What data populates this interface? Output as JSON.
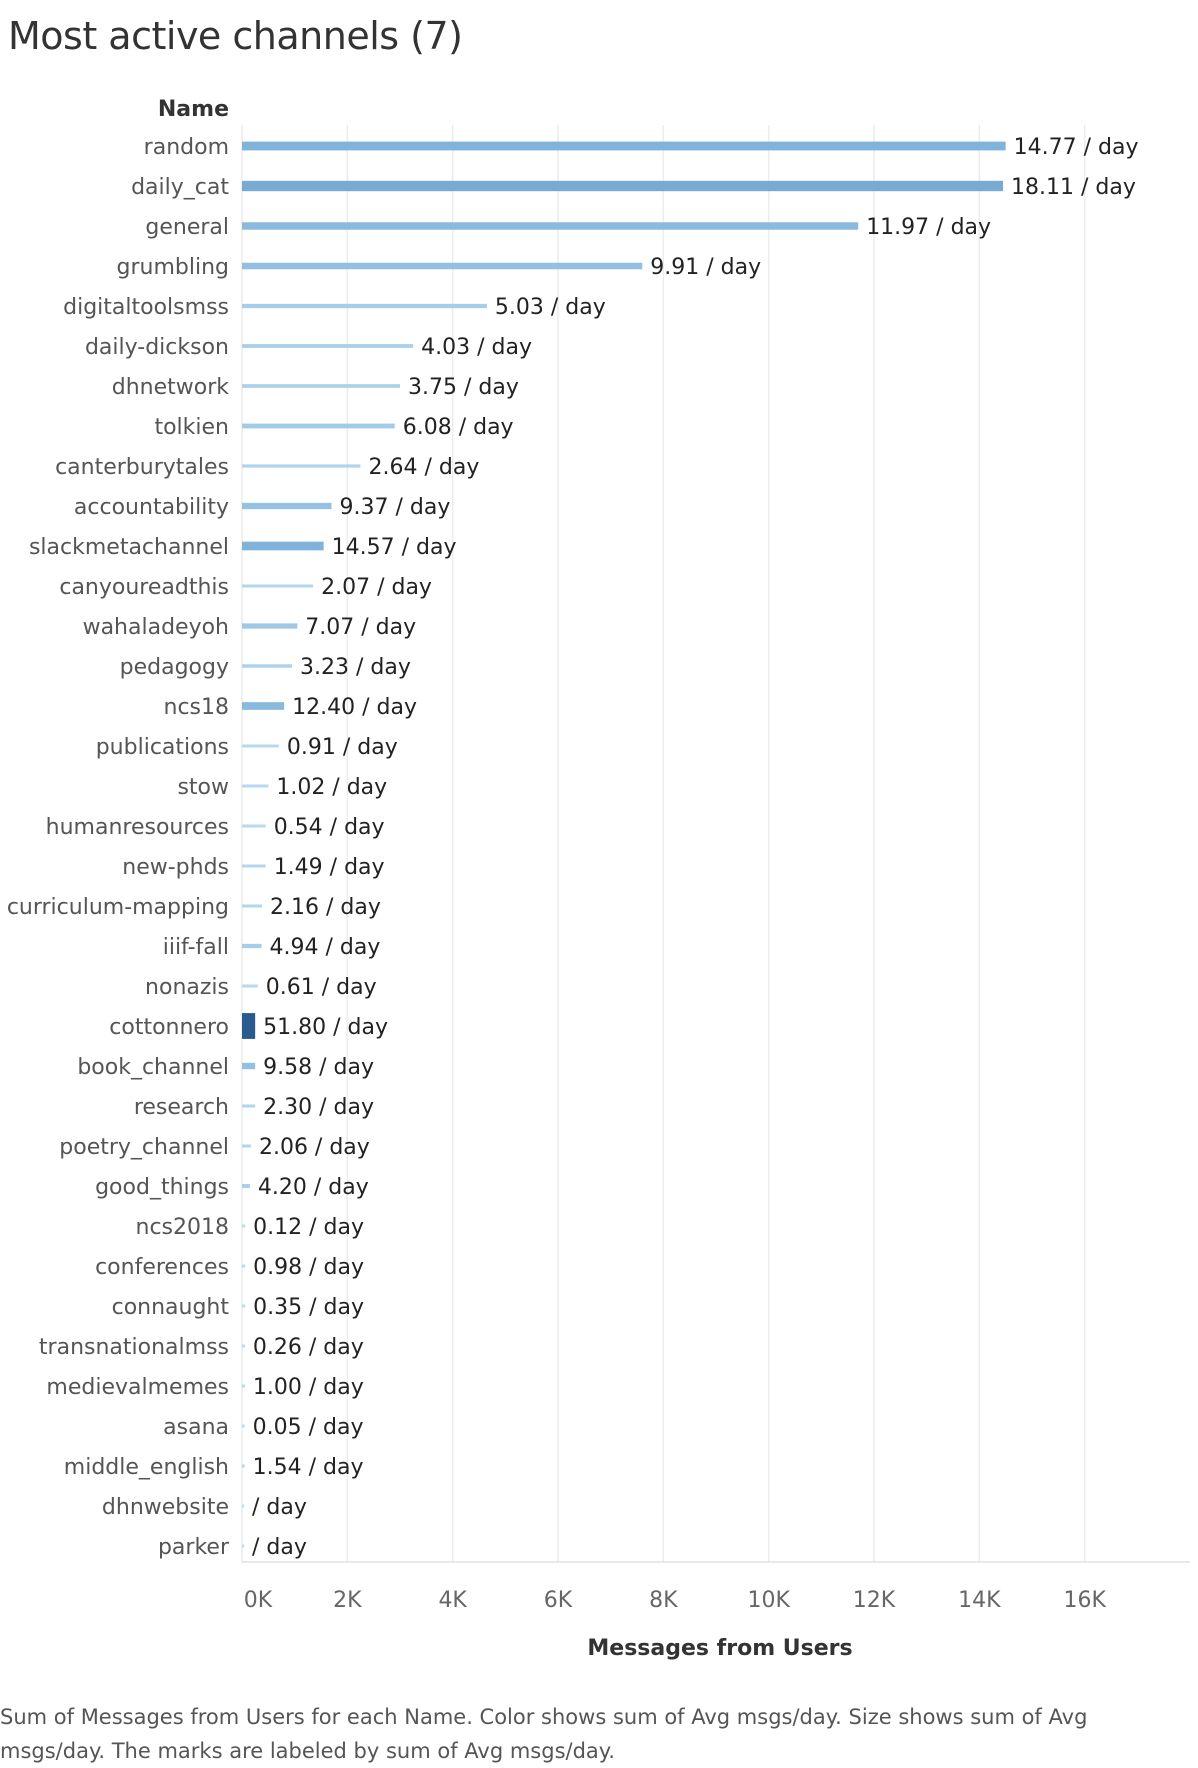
{
  "page": {
    "title": "Most active channels (7)",
    "caption": "Sum of Messages from Users for each Name.  Color shows sum of Avg msgs/day.  Size shows sum of Avg msgs/day.  The marks are labeled by sum of Avg msgs/day."
  },
  "chart_data": {
    "type": "bar",
    "orientation": "horizontal",
    "row_header": "Name",
    "xlabel": "Messages from Users",
    "xlim": [
      0,
      18000
    ],
    "xticks": [
      0,
      2000,
      4000,
      6000,
      8000,
      10000,
      12000,
      14000,
      16000
    ],
    "xtick_labels": [
      "0K",
      "2K",
      "4K",
      "6K",
      "8K",
      "10K",
      "12K",
      "14K",
      "16K"
    ],
    "grid": "vertical",
    "color_scale": {
      "low": "#b9dcf0",
      "mid": "#7fb2d9",
      "high": "#2b5b8c"
    },
    "rows": [
      {
        "name": "random",
        "value": 14500,
        "avg": 14.77,
        "label": "14.77 / day"
      },
      {
        "name": "daily_cat",
        "value": 14450,
        "avg": 18.11,
        "label": "18.11 / day"
      },
      {
        "name": "general",
        "value": 11700,
        "avg": 11.97,
        "label": "11.97 / day"
      },
      {
        "name": "grumbling",
        "value": 7600,
        "avg": 9.91,
        "label": "9.91 / day"
      },
      {
        "name": "digitaltoolsmss",
        "value": 4650,
        "avg": 5.03,
        "label": "5.03 / day"
      },
      {
        "name": "daily-dickson",
        "value": 3250,
        "avg": 4.03,
        "label": "4.03 / day"
      },
      {
        "name": "dhnetwork",
        "value": 3000,
        "avg": 3.75,
        "label": "3.75 / day"
      },
      {
        "name": "tolkien",
        "value": 2900,
        "avg": 6.08,
        "label": "6.08 / day"
      },
      {
        "name": "canterburytales",
        "value": 2250,
        "avg": 2.64,
        "label": "2.64 / day"
      },
      {
        "name": "accountability",
        "value": 1700,
        "avg": 9.37,
        "label": "9.37 / day"
      },
      {
        "name": "slackmetachannel",
        "value": 1550,
        "avg": 14.57,
        "label": "14.57 / day"
      },
      {
        "name": "canyoureadthis",
        "value": 1350,
        "avg": 2.07,
        "label": "2.07 / day"
      },
      {
        "name": "wahaladeyoh",
        "value": 1050,
        "avg": 7.07,
        "label": "7.07 / day"
      },
      {
        "name": "pedagogy",
        "value": 950,
        "avg": 3.23,
        "label": "3.23 / day"
      },
      {
        "name": "ncs18",
        "value": 800,
        "avg": 12.4,
        "label": "12.40 / day"
      },
      {
        "name": "publications",
        "value": 700,
        "avg": 0.91,
        "label": "0.91 / day"
      },
      {
        "name": "stow",
        "value": 500,
        "avg": 1.02,
        "label": "1.02 / day"
      },
      {
        "name": "humanresources",
        "value": 450,
        "avg": 0.54,
        "label": "0.54 / day"
      },
      {
        "name": "new-phds",
        "value": 450,
        "avg": 1.49,
        "label": "1.49 / day"
      },
      {
        "name": "curriculum-mapping",
        "value": 380,
        "avg": 2.16,
        "label": "2.16 / day"
      },
      {
        "name": "iiif-fall",
        "value": 370,
        "avg": 4.94,
        "label": "4.94 / day"
      },
      {
        "name": "nonazis",
        "value": 300,
        "avg": 0.61,
        "label": "0.61 / day"
      },
      {
        "name": "cottonnero",
        "value": 250,
        "avg": 51.8,
        "label": "51.80 / day"
      },
      {
        "name": "book_channel",
        "value": 250,
        "avg": 9.58,
        "label": "9.58 / day"
      },
      {
        "name": "research",
        "value": 250,
        "avg": 2.3,
        "label": "2.30 / day"
      },
      {
        "name": "poetry_channel",
        "value": 170,
        "avg": 2.06,
        "label": "2.06 / day"
      },
      {
        "name": "good_things",
        "value": 150,
        "avg": 4.2,
        "label": "4.20 / day"
      },
      {
        "name": "ncs2018",
        "value": 60,
        "avg": 0.12,
        "label": "0.12 / day"
      },
      {
        "name": "conferences",
        "value": 60,
        "avg": 0.98,
        "label": "0.98 / day"
      },
      {
        "name": "connaught",
        "value": 60,
        "avg": 0.35,
        "label": "0.35 / day"
      },
      {
        "name": "transnationalmss",
        "value": 55,
        "avg": 0.26,
        "label": "0.26 / day"
      },
      {
        "name": "medievalmemes",
        "value": 55,
        "avg": 1.0,
        "label": "1.00 / day"
      },
      {
        "name": "asana",
        "value": 50,
        "avg": 0.05,
        "label": "0.05 / day"
      },
      {
        "name": "middle_english",
        "value": 50,
        "avg": 1.54,
        "label": "1.54 / day"
      },
      {
        "name": "dhnwebsite",
        "value": 10,
        "avg": 0,
        "label": "/ day"
      },
      {
        "name": "parker",
        "value": 5,
        "avg": 0,
        "label": "/ day"
      }
    ]
  }
}
